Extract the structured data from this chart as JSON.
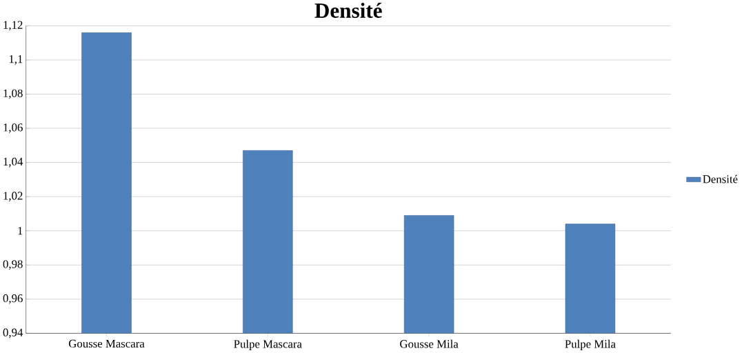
{
  "chart_data": {
    "type": "bar",
    "title": "Densité",
    "categories": [
      "Gousse Mascara",
      "Pulpe Mascara",
      "Gousse Mila",
      "Pulpe Mila"
    ],
    "series": [
      {
        "name": "Densité",
        "color": "#4f81bd",
        "values": [
          1.116,
          1.047,
          1.009,
          1.004
        ]
      }
    ],
    "ylim": [
      0.94,
      1.12
    ],
    "yticks": [
      {
        "value": 0.94,
        "label": "0,94"
      },
      {
        "value": 0.96,
        "label": "0,96"
      },
      {
        "value": 0.98,
        "label": "0,98"
      },
      {
        "value": 1,
        "label": "1"
      },
      {
        "value": 1.02,
        "label": "1,02"
      },
      {
        "value": 1.04,
        "label": "1,04"
      },
      {
        "value": 1.06,
        "label": "1,06"
      },
      {
        "value": 1.08,
        "label": "1,08"
      },
      {
        "value": 1.1,
        "label": "1,1"
      },
      {
        "value": 1.12,
        "label": "1,12"
      }
    ],
    "grid": "y",
    "legend": "right"
  }
}
